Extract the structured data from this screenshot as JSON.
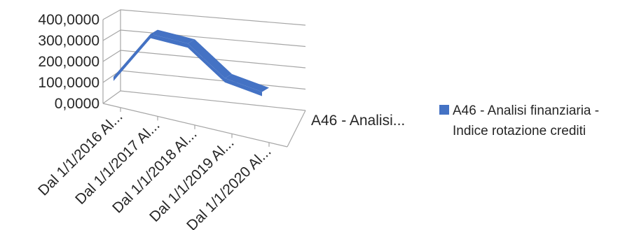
{
  "chart_data": {
    "type": "line",
    "style": "3d",
    "categories": [
      "Dal 1/1/2016 Al...",
      "Dal 1/1/2017 Al...",
      "Dal 1/1/2018 Al...",
      "Dal 1/1/2019 Al...",
      "Dal 1/1/2020 Al..."
    ],
    "series": [
      {
        "name": "A46 - Analisi finanziaria - Indice rotazione crediti",
        "values": [
          120,
          310,
          250,
          70,
          -10
        ]
      }
    ],
    "series_axis_label": "A46 - Analisi...",
    "ylim": [
      0,
      400
    ],
    "y_ticks": [
      "0,0000",
      "100,0000",
      "200,0000",
      "300,0000",
      "400,0000"
    ],
    "grid": true,
    "legend": "right",
    "colors": {
      "series": "#4472C4",
      "series_dark": "#1F3864",
      "grid": "#A6A6A6"
    }
  }
}
